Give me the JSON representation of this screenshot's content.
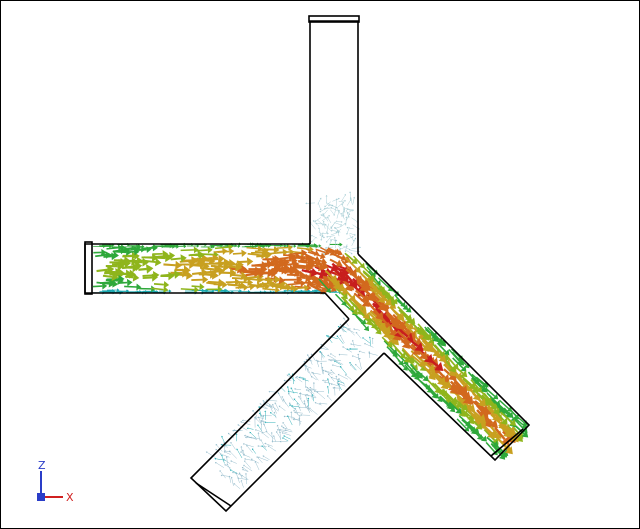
{
  "triad": {
    "z_label": "Z",
    "x_label": "X",
    "z_color": "#2a3dc8",
    "x_color": "#d02020"
  },
  "geometry": {
    "outline_color": "#000000",
    "pipes": [
      "inlet-pipe-left",
      "branch-pipe-top",
      "outlet-pipe-lower-right",
      "branch-pipe-lower-left"
    ]
  },
  "velocity_field": {
    "icon": "arrow-glyph",
    "color_scale": [
      "#1aa8b0",
      "#2ea83a",
      "#8fb51c",
      "#c8a020",
      "#d2691e",
      "#c81e1e"
    ]
  }
}
